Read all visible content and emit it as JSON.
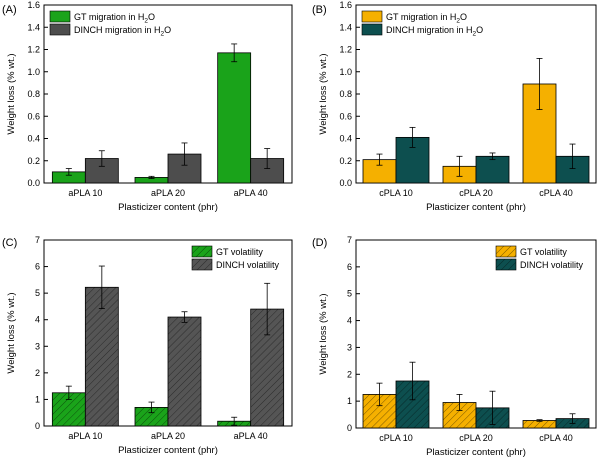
{
  "chart_data": [
    {
      "panel": "(A)",
      "type": "bar",
      "categories": [
        "aPLA 10",
        "aPLA 20",
        "aPLA 40"
      ],
      "xlabel": "Plasticizer content (phr)",
      "ylabel": "Weight loss (% wt.)",
      "ylim": [
        0,
        1.6
      ],
      "yticks": [
        0.0,
        0.2,
        0.4,
        0.6,
        0.8,
        1.0,
        1.2,
        1.4,
        1.6
      ],
      "legend_position": "top-left",
      "series": [
        {
          "name": "GT migration in H",
          "name_sub": "2",
          "name_tail": "O",
          "color": "#1aa31a",
          "hatch": false,
          "values": [
            0.1,
            0.05,
            1.17
          ],
          "errors": [
            0.03,
            0.01,
            0.08
          ]
        },
        {
          "name": "DINCH migration in H",
          "name_sub": "2",
          "name_tail": "O",
          "color": "#4d4d4d",
          "hatch": false,
          "values": [
            0.22,
            0.26,
            0.22
          ],
          "errors": [
            0.07,
            0.1,
            0.09
          ]
        }
      ]
    },
    {
      "panel": "(B)",
      "type": "bar",
      "categories": [
        "cPLA 10",
        "cPLA 20",
        "cPLA 40"
      ],
      "xlabel": "Plasticizer content (phr)",
      "ylabel": "Weight loss (% wt.)",
      "ylim": [
        0,
        1.6
      ],
      "yticks": [
        0.0,
        0.2,
        0.4,
        0.6,
        0.8,
        1.0,
        1.2,
        1.4,
        1.6
      ],
      "legend_position": "top-left",
      "series": [
        {
          "name": "GT migration in H",
          "name_sub": "2",
          "name_tail": "O",
          "color": "#f5b000",
          "hatch": false,
          "values": [
            0.21,
            0.15,
            0.89
          ],
          "errors": [
            0.05,
            0.09,
            0.23
          ]
        },
        {
          "name": "DINCH migration in H",
          "name_sub": "2",
          "name_tail": "O",
          "color": "#0d4f4f",
          "hatch": false,
          "values": [
            0.41,
            0.24,
            0.24
          ],
          "errors": [
            0.09,
            0.03,
            0.11
          ]
        }
      ]
    },
    {
      "panel": "(C)",
      "type": "bar",
      "categories": [
        "aPLA 10",
        "aPLA 20",
        "aPLA 40"
      ],
      "xlabel": "Plasticizer content (phr)",
      "ylabel": "Weight loss (% wt.)",
      "ylim": [
        0,
        7
      ],
      "yticks": [
        0,
        1,
        2,
        3,
        4,
        5,
        6,
        7
      ],
      "legend_position": "top-right",
      "series": [
        {
          "name": "GT volatility",
          "color": "#1aa31a",
          "hatch": true,
          "values": [
            1.25,
            0.7,
            0.18
          ],
          "errors": [
            0.25,
            0.2,
            0.15
          ]
        },
        {
          "name": "DINCH volatility",
          "color": "#555555",
          "hatch": true,
          "values": [
            5.22,
            4.1,
            4.4
          ],
          "errors": [
            0.8,
            0.2,
            0.97
          ]
        }
      ]
    },
    {
      "panel": "(D)",
      "type": "bar",
      "categories": [
        "cPLA 10",
        "cPLA 20",
        "cPLA 40"
      ],
      "xlabel": "Plasticizer content (phr)",
      "ylabel": "Weight loss (% wt.)",
      "ylim": [
        0,
        7
      ],
      "yticks": [
        0,
        1,
        2,
        3,
        4,
        5,
        6,
        7
      ],
      "legend_position": "top-right",
      "series": [
        {
          "name": "GT volatility",
          "color": "#f5b000",
          "hatch": true,
          "values": [
            1.25,
            0.95,
            0.28
          ],
          "errors": [
            0.42,
            0.3,
            0.03
          ]
        },
        {
          "name": "DINCH volatility",
          "color": "#0d4f4f",
          "hatch": true,
          "values": [
            1.75,
            0.75,
            0.35
          ],
          "errors": [
            0.7,
            0.62,
            0.18
          ]
        }
      ]
    }
  ]
}
